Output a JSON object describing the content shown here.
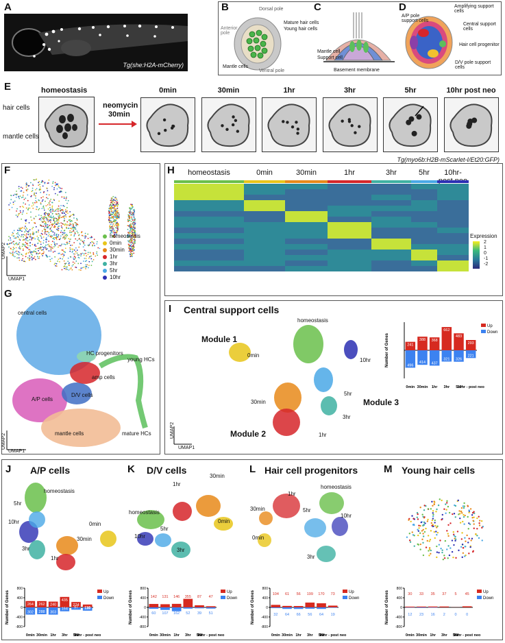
{
  "panels": {
    "A": {
      "label": "A",
      "caption": "Tg(she:H2A-mCherry)"
    },
    "B": {
      "label": "B",
      "dorsal": "Dorsal pole",
      "ventral": "Ventral pole",
      "anterior": "Anterior pole",
      "mature": "Mature hair cells",
      "young": "Young hair cells",
      "mantle": "Mantle cells"
    },
    "C": {
      "label": "C",
      "mantle": "Mantle cell",
      "support": "Support cell",
      "basement": "Basement membrane"
    },
    "D": {
      "label": "D",
      "amplifying": "Amplifying support cells",
      "ap": "A/P pole support cells",
      "central": "Central support cells",
      "hcprog": "Hair cell progenitor",
      "dv": "D/V pole support cells"
    },
    "E": {
      "label": "E",
      "homeostasis": "homeostasis",
      "neomycin": "neomycin",
      "neo_time": "30min",
      "haircells": "hair cells",
      "mantlecells": "mantle cells",
      "times": [
        "0min",
        "30min",
        "1hr",
        "3hr",
        "5hr",
        "10hr post neo"
      ],
      "caption": "Tg(myo6b:H2B-mScarlet-I/Et20:GFP)"
    },
    "F": {
      "label": "F",
      "umap1": "UMAP1",
      "umap2": "UMAP2",
      "legend": [
        {
          "name": "homeostasis",
          "color": "#6abf4b"
        },
        {
          "name": "0min",
          "color": "#e8c51a"
        },
        {
          "name": "30min",
          "color": "#e8891a"
        },
        {
          "name": "1hr",
          "color": "#d6262a"
        },
        {
          "name": "3hr",
          "color": "#3fb1a2"
        },
        {
          "name": "5hr",
          "color": "#4aa8e6"
        },
        {
          "name": "10hr",
          "color": "#2c2fb3"
        }
      ]
    },
    "G": {
      "label": "G",
      "umap1": "UMAP1",
      "umap2": "UMAP2",
      "clusters": [
        "central cells",
        "HC progenitors",
        "young HCs",
        "amp cells",
        "D/V cells",
        "A/P cells",
        "mature HCs",
        "mantle cells"
      ]
    },
    "H": {
      "label": "H",
      "groups": [
        "homeostasis",
        "0min",
        "30min",
        "1hr",
        "3hr",
        "5hr",
        "10hr- post neo"
      ],
      "legend_title": "Expression",
      "legend_ticks": [
        "2",
        "1",
        "0",
        "-1",
        "-2"
      ]
    },
    "I": {
      "label": "I",
      "title": "Central support cells",
      "module1": "Module 1",
      "module2": "Module 2",
      "module3": "Module 3",
      "tps": {
        "homeostasis": "homeostasis",
        "m0": "0min",
        "m30": "30min",
        "h1": "1hr",
        "h3": "3hr",
        "h5": "5hr",
        "h10": "10hr"
      },
      "umap1": "UMAP1",
      "umap2": "UMAP2"
    },
    "J": {
      "label": "J",
      "title": "A/P cells",
      "tps": {
        "homeostasis": "homeostasis",
        "h5": "5hr",
        "h10": "10hr",
        "m0": "0min",
        "m30": "30min",
        "h3": "3hr",
        "h1": "1hr"
      }
    },
    "K": {
      "label": "K",
      "title": "D/V cells",
      "tps": {
        "homeostasis": "homeostasis",
        "h1": "1hr",
        "m30": "30min",
        "m0": "0min",
        "h5": "5hr",
        "h10": "10hr",
        "h3": "3hr"
      }
    },
    "L": {
      "label": "L",
      "title": "Hair cell progenitors",
      "tps": {
        "homeostasis": "homeostasis",
        "h1": "1hr",
        "m30": "30min",
        "h5": "5hr",
        "h10": "10hr",
        "m0": "0min",
        "h3": "3hr"
      }
    },
    "M": {
      "label": "M",
      "title": "Young hair cells"
    }
  },
  "chart_data": [
    {
      "id": "I",
      "type": "bar",
      "categories": [
        "0min",
        "30min",
        "1hr",
        "3hr",
        "5hr",
        "10hr - post neo"
      ],
      "series": [
        {
          "name": "Up",
          "values": [
            241,
            388,
            368,
            662,
            483,
            293
          ]
        },
        {
          "name": "Down",
          "values": [
            -496,
            -414,
            -437,
            -321,
            -326,
            -221
          ]
        }
      ],
      "ylabel": "Number of Genes",
      "ylim": [
        -800,
        800
      ],
      "up_color": "#d62a20",
      "down_color": "#3c82f0"
    },
    {
      "id": "J",
      "type": "bar",
      "categories": [
        "0min",
        "30min",
        "1hr",
        "3hr",
        "5hr",
        "10hr - post neo"
      ],
      "series": [
        {
          "name": "Up",
          "values": [
            264,
            262,
            240,
            435,
            224,
            118
          ]
        },
        {
          "name": "Down",
          "values": [
            -302,
            -288,
            -303,
            -164,
            -97,
            -139
          ]
        }
      ],
      "ylabel": "Number of Genes",
      "ylim": [
        -800,
        800
      ],
      "ticks": [
        "800",
        "400",
        "0",
        "-400",
        "-800"
      ],
      "up_color": "#d62a20",
      "down_color": "#3c82f0"
    },
    {
      "id": "K",
      "type": "bar",
      "categories": [
        "0min",
        "30min",
        "1hr",
        "3hr",
        "5hr",
        "10hr - post neo"
      ],
      "series": [
        {
          "name": "Up",
          "values": [
            142,
            131,
            146,
            355,
            87,
            47
          ]
        },
        {
          "name": "Down",
          "values": [
            -60,
            -107,
            -162,
            -52,
            -39,
            -51
          ]
        }
      ],
      "ylabel": "Number of Genes",
      "ylim": [
        -800,
        800
      ],
      "ticks": [
        "800",
        "400",
        "0",
        "-400",
        "-800"
      ],
      "up_color": "#d62a20",
      "down_color": "#3c82f0"
    },
    {
      "id": "L",
      "type": "bar",
      "categories": [
        "0min",
        "30min",
        "1hr",
        "3hr",
        "5hr",
        "10hr - post neo"
      ],
      "series": [
        {
          "name": "Up",
          "values": [
            104,
            61,
            56,
            199,
            170,
            73
          ]
        },
        {
          "name": "Down",
          "values": [
            -32,
            -64,
            -66,
            -56,
            -64,
            -19
          ]
        }
      ],
      "ylabel": "Number of Genes",
      "ylim": [
        -800,
        800
      ],
      "ticks": [
        "800",
        "400",
        "0",
        "-400",
        "-800"
      ],
      "up_color": "#d62a20",
      "down_color": "#3c82f0"
    },
    {
      "id": "M",
      "type": "bar",
      "categories": [
        "0min",
        "30min",
        "1hr",
        "3hr",
        "5hr",
        "10hr - post neo"
      ],
      "series": [
        {
          "name": "Up",
          "values": [
            30,
            33,
            35,
            37,
            5,
            45
          ]
        },
        {
          "name": "Down",
          "values": [
            -12,
            -23,
            -16,
            -2,
            0,
            0
          ]
        }
      ],
      "ylabel": "Number of Genes",
      "ylim": [
        -800,
        800
      ],
      "ticks": [
        "800",
        "400",
        "0",
        "-400",
        "-800"
      ],
      "up_color": "#d62a20",
      "down_color": "#3c82f0"
    }
  ]
}
